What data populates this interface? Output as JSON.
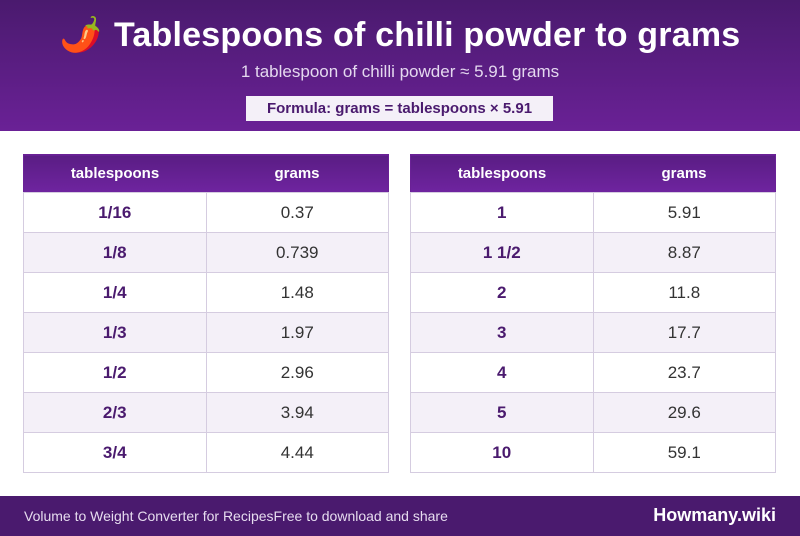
{
  "header": {
    "icon": "chili-pepper-icon",
    "icon_glyph": "🌶️",
    "title": "Tablespoons of chilli powder to grams",
    "subtitle": "1 tablespoon of chilli powder ≈ 5.91 grams",
    "formula": "Formula: grams = tablespoons × 5.91"
  },
  "columns": {
    "tablespoons": "tablespoons",
    "grams": "grams"
  },
  "table_left": [
    {
      "tbsp": "1/16",
      "grams": "0.37"
    },
    {
      "tbsp": "1/8",
      "grams": "0.739"
    },
    {
      "tbsp": "1/4",
      "grams": "1.48"
    },
    {
      "tbsp": "1/3",
      "grams": "1.97"
    },
    {
      "tbsp": "1/2",
      "grams": "2.96"
    },
    {
      "tbsp": "2/3",
      "grams": "3.94"
    },
    {
      "tbsp": "3/4",
      "grams": "4.44"
    }
  ],
  "table_right": [
    {
      "tbsp": "1",
      "grams": "5.91"
    },
    {
      "tbsp": "1 1/2",
      "grams": "8.87"
    },
    {
      "tbsp": "2",
      "grams": "11.8"
    },
    {
      "tbsp": "3",
      "grams": "17.7"
    },
    {
      "tbsp": "4",
      "grams": "23.7"
    },
    {
      "tbsp": "5",
      "grams": "29.6"
    },
    {
      "tbsp": "10",
      "grams": "59.1"
    }
  ],
  "footer": {
    "left_text": "Volume to Weight Converter for Recipes",
    "middle_text": "Free to download and share",
    "brand": "Howmany.wiki"
  },
  "colors": {
    "primary": "#4a1a6e",
    "accent": "#6a2196",
    "row_alt": "#f4f0f8"
  }
}
